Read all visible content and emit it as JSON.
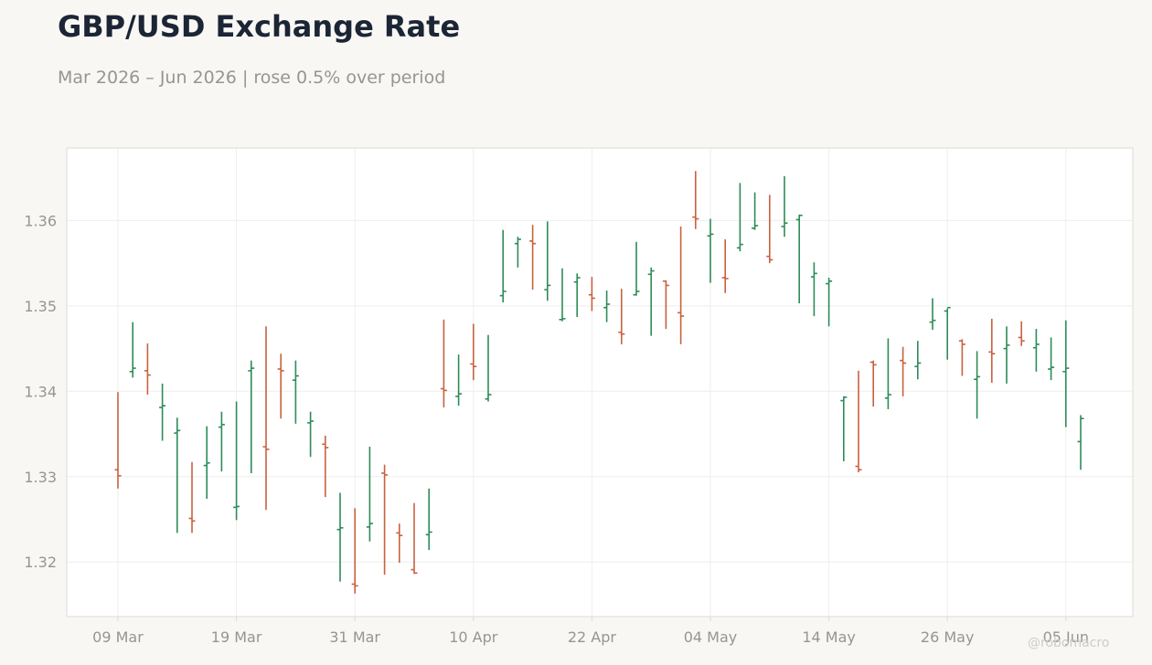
{
  "title": "GBP/USD Exchange Rate",
  "subtitle": "Mar 2026 – Jun 2026 | rose 0.5% over period",
  "watermark": "@robomacro",
  "colors": {
    "up": "#2e8b57",
    "down": "#c8623e",
    "background": "#f8f7f4",
    "plot_background": "#ffffff",
    "grid": "#eeeeee",
    "frame": "#dddbd7",
    "text_muted": "#979591"
  },
  "chart_data": {
    "type": "ohlc",
    "title": "GBP/USD Exchange Rate",
    "subtitle": "Mar 2026 – Jun 2026 | rose 0.5% over period",
    "xlabel": "",
    "ylabel": "",
    "ylim": [
      1.3136,
      1.3685
    ],
    "yticks": [
      1.32,
      1.33,
      1.34,
      1.35,
      1.36
    ],
    "ytick_labels": [
      "1.32",
      "1.33",
      "1.34",
      "1.35",
      "1.36"
    ],
    "xtick_labels": [
      "09 Mar",
      "19 Mar",
      "31 Mar",
      "10 Apr",
      "22 Apr",
      "04 May",
      "14 May",
      "26 May",
      "05 Jun"
    ],
    "xtick_bar_index": [
      0,
      8,
      16,
      24,
      32,
      40,
      48,
      56,
      64
    ],
    "grid": true,
    "legend": "none",
    "bars": [
      {
        "date": "09 Mar",
        "open": 1.3308,
        "high": 1.3399,
        "low": 1.3286,
        "close": 1.3301
      },
      {
        "date": "10 Mar",
        "open": 1.3423,
        "high": 1.3481,
        "low": 1.3416,
        "close": 1.3427
      },
      {
        "date": "11 Mar",
        "open": 1.3424,
        "high": 1.3456,
        "low": 1.3396,
        "close": 1.3419
      },
      {
        "date": "12 Mar",
        "open": 1.3381,
        "high": 1.3409,
        "low": 1.3342,
        "close": 1.3383
      },
      {
        "date": "13 Mar",
        "open": 1.3351,
        "high": 1.3369,
        "low": 1.3234,
        "close": 1.3354
      },
      {
        "date": "16 Mar",
        "open": 1.3251,
        "high": 1.3317,
        "low": 1.3234,
        "close": 1.3248
      },
      {
        "date": "17 Mar",
        "open": 1.3313,
        "high": 1.3359,
        "low": 1.3274,
        "close": 1.3316
      },
      {
        "date": "18 Mar",
        "open": 1.3358,
        "high": 1.3376,
        "low": 1.3306,
        "close": 1.3361
      },
      {
        "date": "19 Mar",
        "open": 1.3264,
        "high": 1.3388,
        "low": 1.3249,
        "close": 1.3265
      },
      {
        "date": "20 Mar",
        "open": 1.3424,
        "high": 1.3436,
        "low": 1.3304,
        "close": 1.3427
      },
      {
        "date": "23 Mar",
        "open": 1.3335,
        "high": 1.3476,
        "low": 1.3261,
        "close": 1.3332
      },
      {
        "date": "24 Mar",
        "open": 1.3426,
        "high": 1.3444,
        "low": 1.3368,
        "close": 1.3424
      },
      {
        "date": "25 Mar",
        "open": 1.3413,
        "high": 1.3436,
        "low": 1.3362,
        "close": 1.3418
      },
      {
        "date": "26 Mar",
        "open": 1.3363,
        "high": 1.3376,
        "low": 1.3323,
        "close": 1.3365
      },
      {
        "date": "27 Mar",
        "open": 1.3338,
        "high": 1.3348,
        "low": 1.3276,
        "close": 1.3334
      },
      {
        "date": "30 Mar",
        "open": 1.3238,
        "high": 1.3281,
        "low": 1.3177,
        "close": 1.324
      },
      {
        "date": "31 Mar",
        "open": 1.3174,
        "high": 1.3263,
        "low": 1.3163,
        "close": 1.3172
      },
      {
        "date": "01 Apr",
        "open": 1.3241,
        "high": 1.3335,
        "low": 1.3224,
        "close": 1.3245
      },
      {
        "date": "02 Apr",
        "open": 1.3304,
        "high": 1.3314,
        "low": 1.3185,
        "close": 1.3302
      },
      {
        "date": "03 Apr",
        "open": 1.3234,
        "high": 1.3245,
        "low": 1.3199,
        "close": 1.3231
      },
      {
        "date": "06 Apr",
        "open": 1.3191,
        "high": 1.3269,
        "low": 1.3186,
        "close": 1.3187
      },
      {
        "date": "07 Apr",
        "open": 1.3232,
        "high": 1.3286,
        "low": 1.3214,
        "close": 1.3235
      },
      {
        "date": "08 Apr",
        "open": 1.3403,
        "high": 1.3484,
        "low": 1.3381,
        "close": 1.3401
      },
      {
        "date": "09 Apr",
        "open": 1.3394,
        "high": 1.3443,
        "low": 1.3383,
        "close": 1.3397
      },
      {
        "date": "10 Apr",
        "open": 1.3432,
        "high": 1.3479,
        "low": 1.3413,
        "close": 1.3429
      },
      {
        "date": "13 Apr",
        "open": 1.3391,
        "high": 1.3466,
        "low": 1.3388,
        "close": 1.3396
      },
      {
        "date": "14 Apr",
        "open": 1.3512,
        "high": 1.3589,
        "low": 1.3504,
        "close": 1.3517
      },
      {
        "date": "15 Apr",
        "open": 1.3573,
        "high": 1.3581,
        "low": 1.3545,
        "close": 1.3578
      },
      {
        "date": "16 Apr",
        "open": 1.3576,
        "high": 1.3595,
        "low": 1.3519,
        "close": 1.3573
      },
      {
        "date": "17 Apr",
        "open": 1.3519,
        "high": 1.3599,
        "low": 1.3506,
        "close": 1.3524
      },
      {
        "date": "20 Apr",
        "open": 1.3484,
        "high": 1.3544,
        "low": 1.3482,
        "close": 1.3485
      },
      {
        "date": "21 Apr",
        "open": 1.3528,
        "high": 1.3538,
        "low": 1.3487,
        "close": 1.3533
      },
      {
        "date": "22 Apr",
        "open": 1.3513,
        "high": 1.3534,
        "low": 1.3494,
        "close": 1.3509
      },
      {
        "date": "23 Apr",
        "open": 1.3498,
        "high": 1.3518,
        "low": 1.3481,
        "close": 1.3502
      },
      {
        "date": "24 Apr",
        "open": 1.3469,
        "high": 1.352,
        "low": 1.3455,
        "close": 1.3467
      },
      {
        "date": "27 Apr",
        "open": 1.3513,
        "high": 1.3575,
        "low": 1.3512,
        "close": 1.3517
      },
      {
        "date": "28 Apr",
        "open": 1.3537,
        "high": 1.3545,
        "low": 1.3465,
        "close": 1.3541
      },
      {
        "date": "29 Apr",
        "open": 1.3529,
        "high": 1.353,
        "low": 1.3473,
        "close": 1.3524
      },
      {
        "date": "30 Apr",
        "open": 1.3492,
        "high": 1.3593,
        "low": 1.3455,
        "close": 1.3488
      },
      {
        "date": "01 May",
        "open": 1.3604,
        "high": 1.3658,
        "low": 1.359,
        "close": 1.3602
      },
      {
        "date": "04 May",
        "open": 1.3582,
        "high": 1.3602,
        "low": 1.3527,
        "close": 1.3584
      },
      {
        "date": "05 May",
        "open": 1.3533,
        "high": 1.3578,
        "low": 1.3515,
        "close": 1.3532
      },
      {
        "date": "06 May",
        "open": 1.3568,
        "high": 1.3644,
        "low": 1.3564,
        "close": 1.3572
      },
      {
        "date": "07 May",
        "open": 1.3591,
        "high": 1.3633,
        "low": 1.3589,
        "close": 1.3594
      },
      {
        "date": "08 May",
        "open": 1.3558,
        "high": 1.363,
        "low": 1.355,
        "close": 1.3554
      },
      {
        "date": "11 May",
        "open": 1.3593,
        "high": 1.3652,
        "low": 1.3581,
        "close": 1.3597
      },
      {
        "date": "12 May",
        "open": 1.3601,
        "high": 1.3607,
        "low": 1.3503,
        "close": 1.3606
      },
      {
        "date": "13 May",
        "open": 1.3534,
        "high": 1.3551,
        "low": 1.3488,
        "close": 1.3538
      },
      {
        "date": "14 May",
        "open": 1.3526,
        "high": 1.3533,
        "low": 1.3476,
        "close": 1.3529
      },
      {
        "date": "15 May",
        "open": 1.3389,
        "high": 1.3394,
        "low": 1.3318,
        "close": 1.3393
      },
      {
        "date": "18 May",
        "open": 1.3312,
        "high": 1.3424,
        "low": 1.3305,
        "close": 1.3308
      },
      {
        "date": "19 May",
        "open": 1.3434,
        "high": 1.3436,
        "low": 1.3382,
        "close": 1.3431
      },
      {
        "date": "20 May",
        "open": 1.3392,
        "high": 1.3462,
        "low": 1.3379,
        "close": 1.3396
      },
      {
        "date": "21 May",
        "open": 1.3436,
        "high": 1.3452,
        "low": 1.3394,
        "close": 1.3433
      },
      {
        "date": "22 May",
        "open": 1.3429,
        "high": 1.3459,
        "low": 1.3414,
        "close": 1.3433
      },
      {
        "date": "25 May",
        "open": 1.3481,
        "high": 1.3509,
        "low": 1.3472,
        "close": 1.3483
      },
      {
        "date": "26 May",
        "open": 1.3494,
        "high": 1.3497,
        "low": 1.3437,
        "close": 1.3498
      },
      {
        "date": "27 May",
        "open": 1.3459,
        "high": 1.3461,
        "low": 1.3418,
        "close": 1.3455
      },
      {
        "date": "28 May",
        "open": 1.3414,
        "high": 1.3447,
        "low": 1.3368,
        "close": 1.3417
      },
      {
        "date": "29 May",
        "open": 1.3446,
        "high": 1.3485,
        "low": 1.341,
        "close": 1.3444
      },
      {
        "date": "01 Jun",
        "open": 1.345,
        "high": 1.3476,
        "low": 1.3409,
        "close": 1.3454
      },
      {
        "date": "02 Jun",
        "open": 1.3463,
        "high": 1.3482,
        "low": 1.3453,
        "close": 1.3459
      },
      {
        "date": "03 Jun",
        "open": 1.3451,
        "high": 1.3473,
        "low": 1.3423,
        "close": 1.3455
      },
      {
        "date": "04 Jun",
        "open": 1.3426,
        "high": 1.3463,
        "low": 1.3413,
        "close": 1.3428
      },
      {
        "date": "05 Jun",
        "open": 1.3423,
        "high": 1.3483,
        "low": 1.3358,
        "close": 1.3427
      },
      {
        "date": "08 Jun",
        "open": 1.3341,
        "high": 1.3372,
        "low": 1.3308,
        "close": 1.3368
      }
    ]
  }
}
